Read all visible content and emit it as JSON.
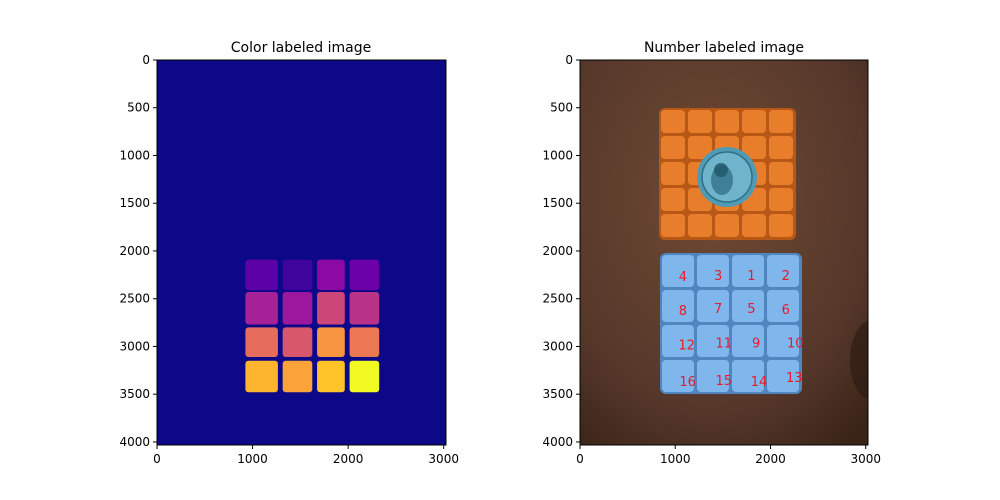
{
  "colors": {
    "background_label": "#0d0887",
    "photo_bg_dark": "#3f281b",
    "photo_bg_mid": "#6b4631",
    "orange_cube": "#e87e2c",
    "orange_dark": "#b85816",
    "blue_cube": "#7fb6ec",
    "blue_dark": "#4f86c0",
    "coin": "#4f9bb5",
    "number_label": "#e8192c"
  },
  "chart_data": [
    {
      "type": "heatmap",
      "title": "Color labeled image",
      "xlabel": "",
      "ylabel": "",
      "xlim": [
        0,
        3024
      ],
      "ylim": [
        4032,
        0
      ],
      "xticks": [
        0,
        1000,
        2000,
        3000
      ],
      "yticks": [
        0,
        500,
        1000,
        1500,
        2000,
        2500,
        3000,
        3500,
        4000
      ],
      "grid": false,
      "labels": [
        {
          "label": 1,
          "color": "#8b0aa5"
        },
        {
          "label": 2,
          "color": "#6a00a8"
        },
        {
          "label": 3,
          "color": "#3e049c"
        },
        {
          "label": 4,
          "color": "#5c01a6"
        },
        {
          "label": 5,
          "color": "#cc4778"
        },
        {
          "label": 6,
          "color": "#b83289"
        },
        {
          "label": 7,
          "color": "#9c179e"
        },
        {
          "label": 8,
          "color": "#a62098"
        },
        {
          "label": 9,
          "color": "#f89540"
        },
        {
          "label": 10,
          "color": "#ec7853"
        },
        {
          "label": 11,
          "color": "#d8576b"
        },
        {
          "label": 12,
          "color": "#e66c5c"
        },
        {
          "label": 13,
          "color": "#f0f921"
        },
        {
          "label": 14,
          "color": "#fdc328"
        },
        {
          "label": 15,
          "color": "#fba238"
        },
        {
          "label": 16,
          "color": "#fdb42f"
        }
      ]
    },
    {
      "type": "image",
      "title": "Number labeled image",
      "xlabel": "",
      "ylabel": "",
      "xlim": [
        0,
        3024
      ],
      "ylim": [
        4032,
        0
      ],
      "xticks": [
        0,
        1000,
        2000,
        3000
      ],
      "yticks": [
        0,
        500,
        1000,
        1500,
        2000,
        2500,
        3000,
        3500,
        4000
      ],
      "grid": false,
      "annotations": [
        {
          "text": "4",
          "x": 1080,
          "y": 2270
        },
        {
          "text": "3",
          "x": 1450,
          "y": 2260
        },
        {
          "text": "1",
          "x": 1800,
          "y": 2260
        },
        {
          "text": "2",
          "x": 2160,
          "y": 2260
        },
        {
          "text": "8",
          "x": 1080,
          "y": 2630
        },
        {
          "text": "7",
          "x": 1450,
          "y": 2610
        },
        {
          "text": "5",
          "x": 1800,
          "y": 2610
        },
        {
          "text": "6",
          "x": 2160,
          "y": 2620
        },
        {
          "text": "12",
          "x": 1120,
          "y": 2990
        },
        {
          "text": "11",
          "x": 1510,
          "y": 2970
        },
        {
          "text": "9",
          "x": 1850,
          "y": 2970
        },
        {
          "text": "10",
          "x": 2260,
          "y": 2970
        },
        {
          "text": "16",
          "x": 1130,
          "y": 3370
        },
        {
          "text": "15",
          "x": 1510,
          "y": 3360
        },
        {
          "text": "14",
          "x": 1880,
          "y": 3370
        },
        {
          "text": "13",
          "x": 2250,
          "y": 3330
        }
      ]
    }
  ]
}
